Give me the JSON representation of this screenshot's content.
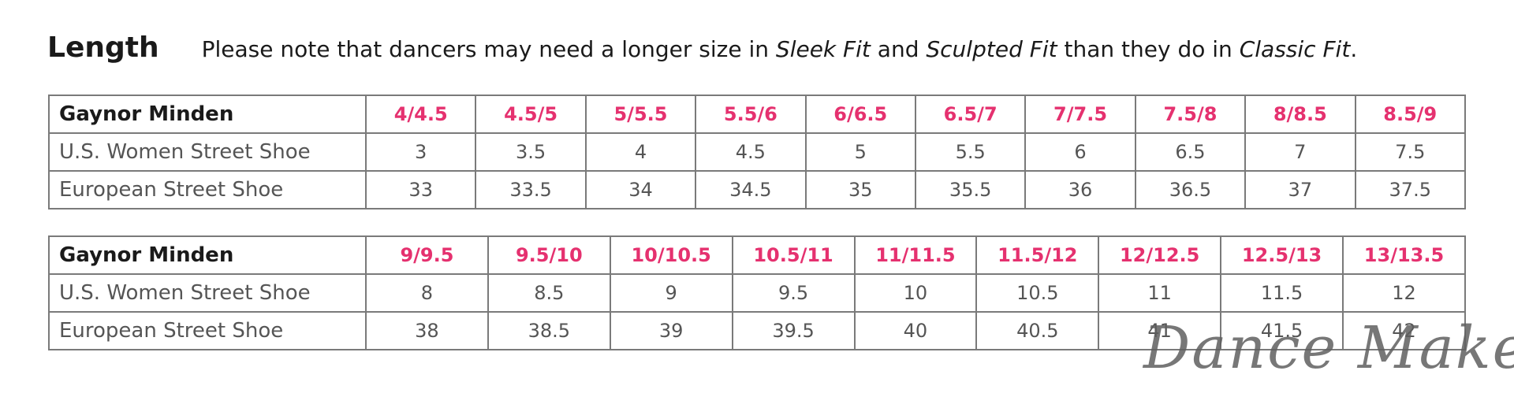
{
  "header": {
    "title": "Length",
    "note_part1": "Please note that dancers may need a longer size in ",
    "note_em1": "Sleek Fit",
    "note_part2": " and ",
    "note_em2": "Sculpted Fit",
    "note_part3": " than they do in ",
    "note_em3": "Classic Fit",
    "note_part4": "."
  },
  "colors": {
    "accent": "#e5316f",
    "text": "#555555",
    "heading": "#1a1a1a",
    "border": "#7a7a7a"
  },
  "tables": [
    {
      "rows": [
        {
          "label": "Gaynor Minden",
          "cells": [
            "4/4.5",
            "4.5/5",
            "5/5.5",
            "5.5/6",
            "6/6.5",
            "6.5/7",
            "7/7.5",
            "7.5/8",
            "8/8.5",
            "8.5/9"
          ]
        },
        {
          "label": "U.S. Women Street Shoe",
          "cells": [
            "3",
            "3.5",
            "4",
            "4.5",
            "5",
            "5.5",
            "6",
            "6.5",
            "7",
            "7.5"
          ]
        },
        {
          "label": "European Street Shoe",
          "cells": [
            "33",
            "33.5",
            "34",
            "34.5",
            "35",
            "35.5",
            "36",
            "36.5",
            "37",
            "37.5"
          ]
        }
      ]
    },
    {
      "rows": [
        {
          "label": "Gaynor Minden",
          "cells": [
            "9/9.5",
            "9.5/10",
            "10/10.5",
            "10.5/11",
            "11/11.5",
            "11.5/12",
            "12/12.5",
            "12.5/13",
            "13/13.5"
          ]
        },
        {
          "label": "U.S. Women Street Shoe",
          "cells": [
            "8",
            "8.5",
            "9",
            "9.5",
            "10",
            "10.5",
            "11",
            "11.5",
            "12"
          ]
        },
        {
          "label": "European Street Shoe",
          "cells": [
            "38",
            "38.5",
            "39",
            "39.5",
            "40",
            "40.5",
            "41",
            "41.5",
            "42"
          ]
        }
      ]
    }
  ],
  "watermark": "Dance Makers"
}
